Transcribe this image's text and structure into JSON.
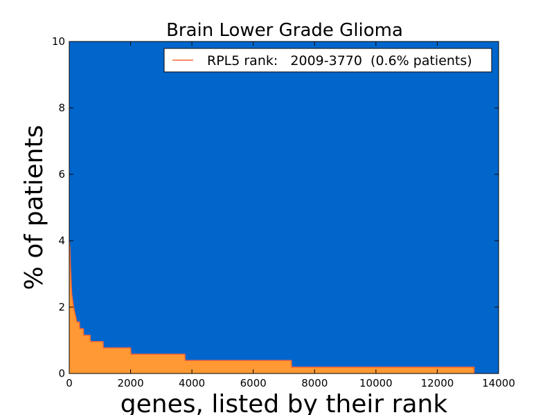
{
  "chart_data": {
    "type": "area",
    "title": "Brain Lower Grade Glioma",
    "xlabel": "genes, listed by their rank",
    "ylabel": "% of patients",
    "xlim": [
      0,
      14000
    ],
    "ylim": [
      0,
      10
    ],
    "x_ticks": [
      0,
      2000,
      4000,
      6000,
      8000,
      10000,
      12000,
      14000
    ],
    "y_ticks": [
      0,
      2,
      4,
      6,
      8,
      10
    ],
    "grid": false,
    "background_color": "#0066cc",
    "fill_color": "#ff9933",
    "line_color": "#ff6633",
    "legend": {
      "position": "top-right",
      "entries": [
        {
          "label": "RPL5 rank:   2009-3770  (0.6% patients)",
          "color": "#ff6633"
        }
      ]
    },
    "series": [
      {
        "values": [
          [
            0,
            4.0
          ],
          [
            20,
            3.8
          ],
          [
            40,
            3.2
          ],
          [
            60,
            2.8
          ],
          [
            80,
            2.4
          ],
          [
            110,
            2.2
          ],
          [
            150,
            1.95
          ],
          [
            200,
            1.75
          ],
          [
            250,
            1.55
          ],
          [
            330,
            1.55
          ],
          [
            340,
            1.35
          ],
          [
            460,
            1.35
          ],
          [
            470,
            1.15
          ],
          [
            680,
            1.15
          ],
          [
            690,
            0.96
          ],
          [
            1100,
            0.96
          ],
          [
            1110,
            0.77
          ],
          [
            2000,
            0.77
          ],
          [
            2010,
            0.58
          ],
          [
            3770,
            0.58
          ],
          [
            3780,
            0.39
          ],
          [
            7240,
            0.39
          ],
          [
            7250,
            0.19
          ],
          [
            13200,
            0.19
          ],
          [
            13200,
            0
          ]
        ]
      }
    ]
  }
}
